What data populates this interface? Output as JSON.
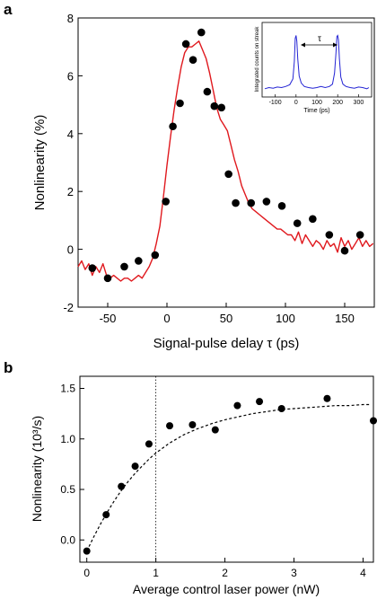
{
  "chart_data": [
    {
      "panel_label": "a",
      "type": "line",
      "xlabel": "Signal-pulse delay τ (ps)",
      "ylabel": "Nonlinearity (%)",
      "xlim": [
        -75,
        175
      ],
      "ylim": [
        -2,
        8
      ],
      "xticks": [
        -50,
        0,
        50,
        100,
        150
      ],
      "yticks": [
        -2,
        0,
        2,
        4,
        6,
        8
      ],
      "grid": false,
      "colors": {
        "line": "#e0191e",
        "points": "#000000"
      },
      "series": [
        {
          "kind": "line",
          "x": [
            -75,
            -72,
            -69,
            -66,
            -63,
            -60,
            -57,
            -54,
            -51,
            -48,
            -45,
            -42,
            -39,
            -36,
            -33,
            -30,
            -27,
            -24,
            -21,
            -18,
            -15,
            -12,
            -9,
            -6,
            -3,
            0,
            3,
            6,
            9,
            12,
            15,
            18,
            21,
            24,
            27,
            30,
            33,
            36,
            39,
            42,
            45,
            48,
            51,
            54,
            57,
            60,
            63,
            66,
            69,
            72,
            75,
            78,
            81,
            84,
            87,
            90,
            93,
            96,
            99,
            102,
            105,
            108,
            111,
            114,
            117,
            120,
            123,
            126,
            129,
            132,
            135,
            138,
            141,
            144,
            147,
            150,
            153,
            156,
            159,
            162,
            165,
            168,
            171,
            174
          ],
          "values": [
            -0.6,
            -0.4,
            -0.7,
            -0.5,
            -0.9,
            -0.6,
            -0.8,
            -0.5,
            -0.9,
            -1.0,
            -0.9,
            -1.0,
            -1.1,
            -1.0,
            -1.0,
            -1.1,
            -1.0,
            -0.9,
            -1.0,
            -0.8,
            -0.6,
            -0.3,
            0.2,
            0.8,
            1.8,
            2.9,
            3.9,
            4.8,
            5.6,
            6.3,
            6.8,
            7.0,
            7.0,
            7.1,
            7.2,
            6.9,
            6.6,
            6.1,
            5.5,
            4.9,
            4.5,
            4.3,
            4.1,
            3.6,
            3.1,
            2.7,
            2.2,
            1.9,
            1.6,
            1.4,
            1.3,
            1.2,
            1.1,
            1.0,
            0.9,
            0.8,
            0.7,
            0.7,
            0.6,
            0.5,
            0.5,
            0.3,
            0.6,
            0.2,
            0.5,
            0.3,
            0.1,
            0.3,
            0.2,
            0.0,
            0.3,
            0.1,
            0.2,
            -0.1,
            0.4,
            0.1,
            0.3,
            0.0,
            0.2,
            0.4,
            0.1,
            0.3,
            0.1,
            0.2
          ]
        },
        {
          "kind": "scatter",
          "x": [
            -63,
            -50,
            -36,
            -24,
            -10,
            -1,
            5,
            11,
            16,
            22,
            29,
            34,
            40,
            46,
            52,
            58,
            71,
            84,
            97,
            110,
            123,
            137,
            150,
            163
          ],
          "values": [
            -0.65,
            -1.0,
            -0.6,
            -0.4,
            -0.2,
            1.65,
            4.25,
            5.05,
            7.1,
            6.55,
            7.5,
            5.45,
            4.95,
            4.9,
            2.6,
            1.6,
            1.6,
            1.65,
            1.5,
            0.9,
            1.05,
            0.5,
            -0.05,
            0.5
          ]
        }
      ]
    },
    {
      "panel_label": "a-inset",
      "type": "line",
      "xlabel": "Time (ps)",
      "ylabel": "Integrated counts on streak",
      "xlim": [
        -150,
        350
      ],
      "xticks": [
        -100,
        0,
        100,
        200,
        300
      ],
      "annotation": "τ",
      "colors": {
        "line": "#2424d4"
      },
      "series": [
        {
          "kind": "line",
          "x": [
            -150,
            -130,
            -110,
            -90,
            -70,
            -50,
            -30,
            -15,
            -8,
            -4,
            0,
            4,
            8,
            15,
            25,
            40,
            60,
            80,
            100,
            120,
            140,
            160,
            175,
            185,
            192,
            196,
            200,
            204,
            208,
            215,
            225,
            240,
            260,
            280,
            300,
            320,
            340,
            350
          ],
          "values": [
            0.08,
            0.1,
            0.09,
            0.11,
            0.1,
            0.12,
            0.15,
            0.25,
            0.55,
            0.95,
            1.0,
            0.9,
            0.6,
            0.3,
            0.18,
            0.12,
            0.1,
            0.09,
            0.1,
            0.12,
            0.1,
            0.12,
            0.16,
            0.35,
            0.7,
            0.98,
            1.0,
            0.92,
            0.6,
            0.28,
            0.16,
            0.12,
            0.1,
            0.09,
            0.11,
            0.1,
            0.08,
            0.1
          ]
        }
      ]
    },
    {
      "panel_label": "b",
      "type": "scatter",
      "xlabel": "Average control laser power (nW)",
      "ylabel": "Nonlinearity (10³/s)",
      "xlim": [
        -0.1,
        4.15
      ],
      "ylim": [
        -0.22,
        1.62
      ],
      "xticks": [
        0,
        1,
        2,
        3,
        4
      ],
      "yticks": [
        0.0,
        0.5,
        1.0,
        1.5
      ],
      "ytick_labels": [
        "0.0",
        "0.5",
        "1.0",
        "1.5"
      ],
      "grid": false,
      "vline_x": 1,
      "colors": {
        "points": "#000000",
        "fit": "#000000"
      },
      "series": [
        {
          "kind": "scatter",
          "x": [
            0,
            0.28,
            0.5,
            0.7,
            0.9,
            1.2,
            1.53,
            1.86,
            2.18,
            2.5,
            2.82,
            3.48,
            4.15
          ],
          "values": [
            -0.11,
            0.25,
            0.53,
            0.73,
            0.95,
            1.13,
            1.14,
            1.09,
            1.33,
            1.37,
            1.3,
            1.4,
            1.18
          ]
        },
        {
          "kind": "line",
          "x": [
            0,
            0.1,
            0.2,
            0.3,
            0.4,
            0.5,
            0.6,
            0.7,
            0.8,
            0.9,
            1.0,
            1.2,
            1.4,
            1.6,
            1.8,
            2.0,
            2.2,
            2.4,
            2.6,
            2.8,
            3.0,
            3.2,
            3.4,
            3.6,
            3.8,
            4.0,
            4.1
          ],
          "values": [
            -0.11,
            0.03,
            0.16,
            0.28,
            0.39,
            0.49,
            0.58,
            0.66,
            0.73,
            0.8,
            0.86,
            0.96,
            1.04,
            1.1,
            1.15,
            1.19,
            1.22,
            1.25,
            1.27,
            1.29,
            1.3,
            1.31,
            1.32,
            1.33,
            1.33,
            1.34,
            1.34
          ]
        }
      ]
    }
  ]
}
